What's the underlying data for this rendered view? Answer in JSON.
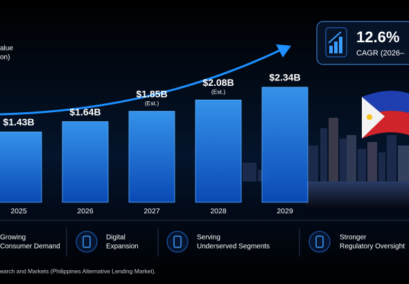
{
  "chart_data": {
    "type": "bar",
    "y_label": [
      "alue",
      "on)"
    ],
    "categories": [
      "2025",
      "2026",
      "2027",
      "2028",
      "2029"
    ],
    "values": [
      1.43,
      1.64,
      1.85,
      2.08,
      2.34
    ],
    "value_labels": [
      "$1.43B",
      "$1.64B",
      "$1.85B",
      "$2.08B",
      "$2.34B"
    ],
    "value_notes": [
      null,
      null,
      "(Est.)",
      "(Est.)",
      null
    ],
    "color": "#1f7ae8"
  },
  "kpi": {
    "value": "12.6%",
    "label": "CAGR (2026–"
  },
  "drivers": [
    [
      "Growing",
      "Consumer Demand"
    ],
    [
      "Digital",
      "Expansion"
    ],
    [
      "Serving",
      "Underserved Segments"
    ],
    [
      "Stronger",
      "Regulatory Oversight"
    ]
  ],
  "source": "earch and Markets (Philippines Alternative Lending Market)."
}
